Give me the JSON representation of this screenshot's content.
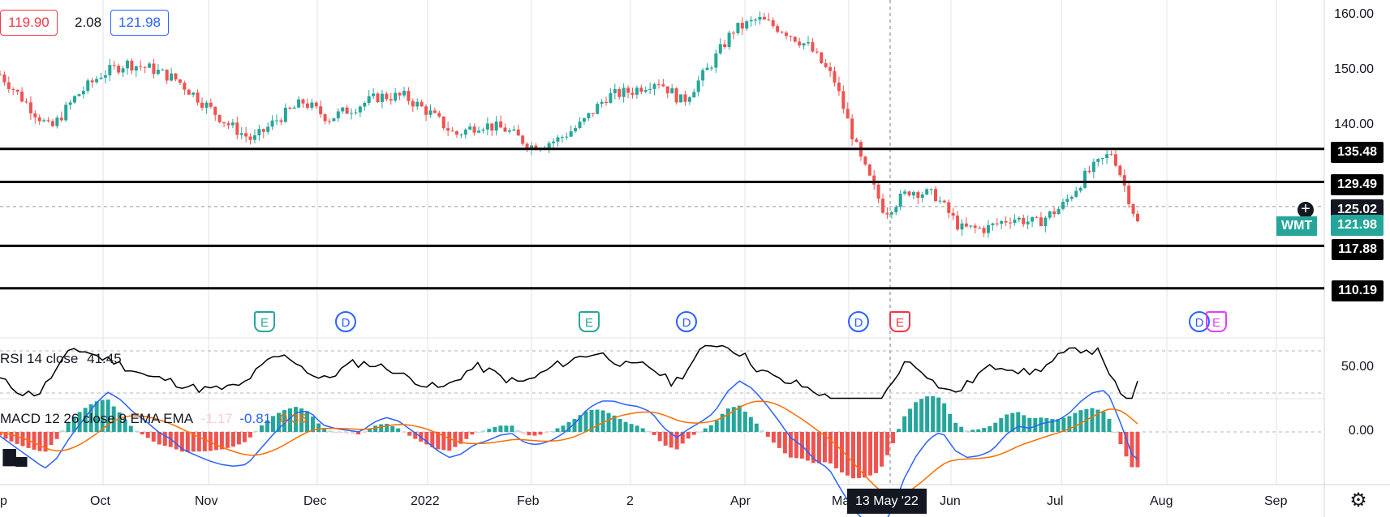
{
  "header": {
    "open_value": "119.90",
    "change_value": "2.08",
    "close_value": "121.98"
  },
  "symbol": {
    "ticker": "WMT",
    "last_price": "121.98",
    "crosshair_price": "125.02"
  },
  "levels": {
    "l1": "135.48",
    "l2": "129.49",
    "l3": "117.88",
    "l4": "110.19"
  },
  "price_axis": {
    "t1": "160.00",
    "t2": "150.00",
    "t3": "140.00"
  },
  "time_axis": {
    "sep": "p",
    "oct": "Oct",
    "nov": "Nov",
    "dec": "Dec",
    "y2022": "2022",
    "feb": "Feb",
    "mar_tick": "2",
    "apr": "Apr",
    "may_partial": "Ma",
    "crosshair_date": "13 May '22",
    "jun": "Jun",
    "jul": "Jul",
    "aug": "Aug",
    "sep2": "Sep"
  },
  "events": {
    "e_label": "E",
    "d_label": "D"
  },
  "rsi": {
    "label": "RSI 14 close",
    "value": "41.45",
    "axis_tick": "50.00"
  },
  "macd": {
    "label": "MACD 12 26 close 9 EMA EMA",
    "hist_value": "-1.17",
    "macd_value": "-0.81",
    "signal_value": "0.36",
    "axis_tick": "0.00"
  },
  "colors": {
    "up": "#26a69a",
    "down": "#ef5350",
    "macd_line": "#2962ff",
    "signal_line": "#ff6d00",
    "earnings": "#26a69a",
    "earnings_recent": "#f23645",
    "earnings_future": "#e040fb",
    "dividend": "#2962ff"
  },
  "icons": {
    "logo": "tradingview-logo-icon",
    "settings": "gear-icon",
    "crosshair": "plus-circle-icon"
  },
  "chart_data": {
    "type": "candlestick",
    "x": [
      "2021-09-27",
      "2021-10-01",
      "2021-10-08",
      "2021-10-15",
      "2021-10-22",
      "2021-10-29",
      "2021-11-05",
      "2021-11-12",
      "2021-11-19",
      "2021-11-26",
      "2021-12-03",
      "2021-12-10",
      "2021-12-17",
      "2021-12-24",
      "2021-12-31",
      "2022-01-07",
      "2022-01-14",
      "2022-01-21",
      "2022-01-28",
      "2022-02-04",
      "2022-02-11",
      "2022-02-18",
      "2022-02-25",
      "2022-03-04",
      "2022-03-11",
      "2022-03-18",
      "2022-03-25",
      "2022-04-01",
      "2022-04-08",
      "2022-04-14",
      "2022-04-22",
      "2022-04-29",
      "2022-05-06",
      "2022-05-13",
      "2022-05-17",
      "2022-05-20",
      "2022-05-27",
      "2022-06-03",
      "2022-06-10",
      "2022-06-17",
      "2022-06-24",
      "2022-07-01",
      "2022-07-08",
      "2022-07-15",
      "2022-07-22",
      "2022-07-26"
    ],
    "close": [
      149,
      144,
      139,
      145,
      149,
      151,
      150,
      148,
      144,
      140,
      137,
      141,
      144,
      141,
      143,
      145,
      145,
      142,
      138,
      140,
      139,
      136,
      137,
      140,
      145,
      146,
      148,
      144,
      150,
      157,
      159,
      157,
      154,
      148,
      134,
      124,
      128,
      127,
      121,
      121,
      123,
      122,
      125,
      131,
      135,
      122
    ],
    "high_label": "160.00",
    "levels": [
      135.48,
      129.49,
      117.88,
      110.19
    ],
    "crosshair_price": 125.02,
    "last_price": 121.98,
    "rsi": {
      "last": 41.45,
      "level": 50
    },
    "macd": {
      "histogram": -1.17,
      "macd": -0.81,
      "signal": 0.36
    }
  }
}
